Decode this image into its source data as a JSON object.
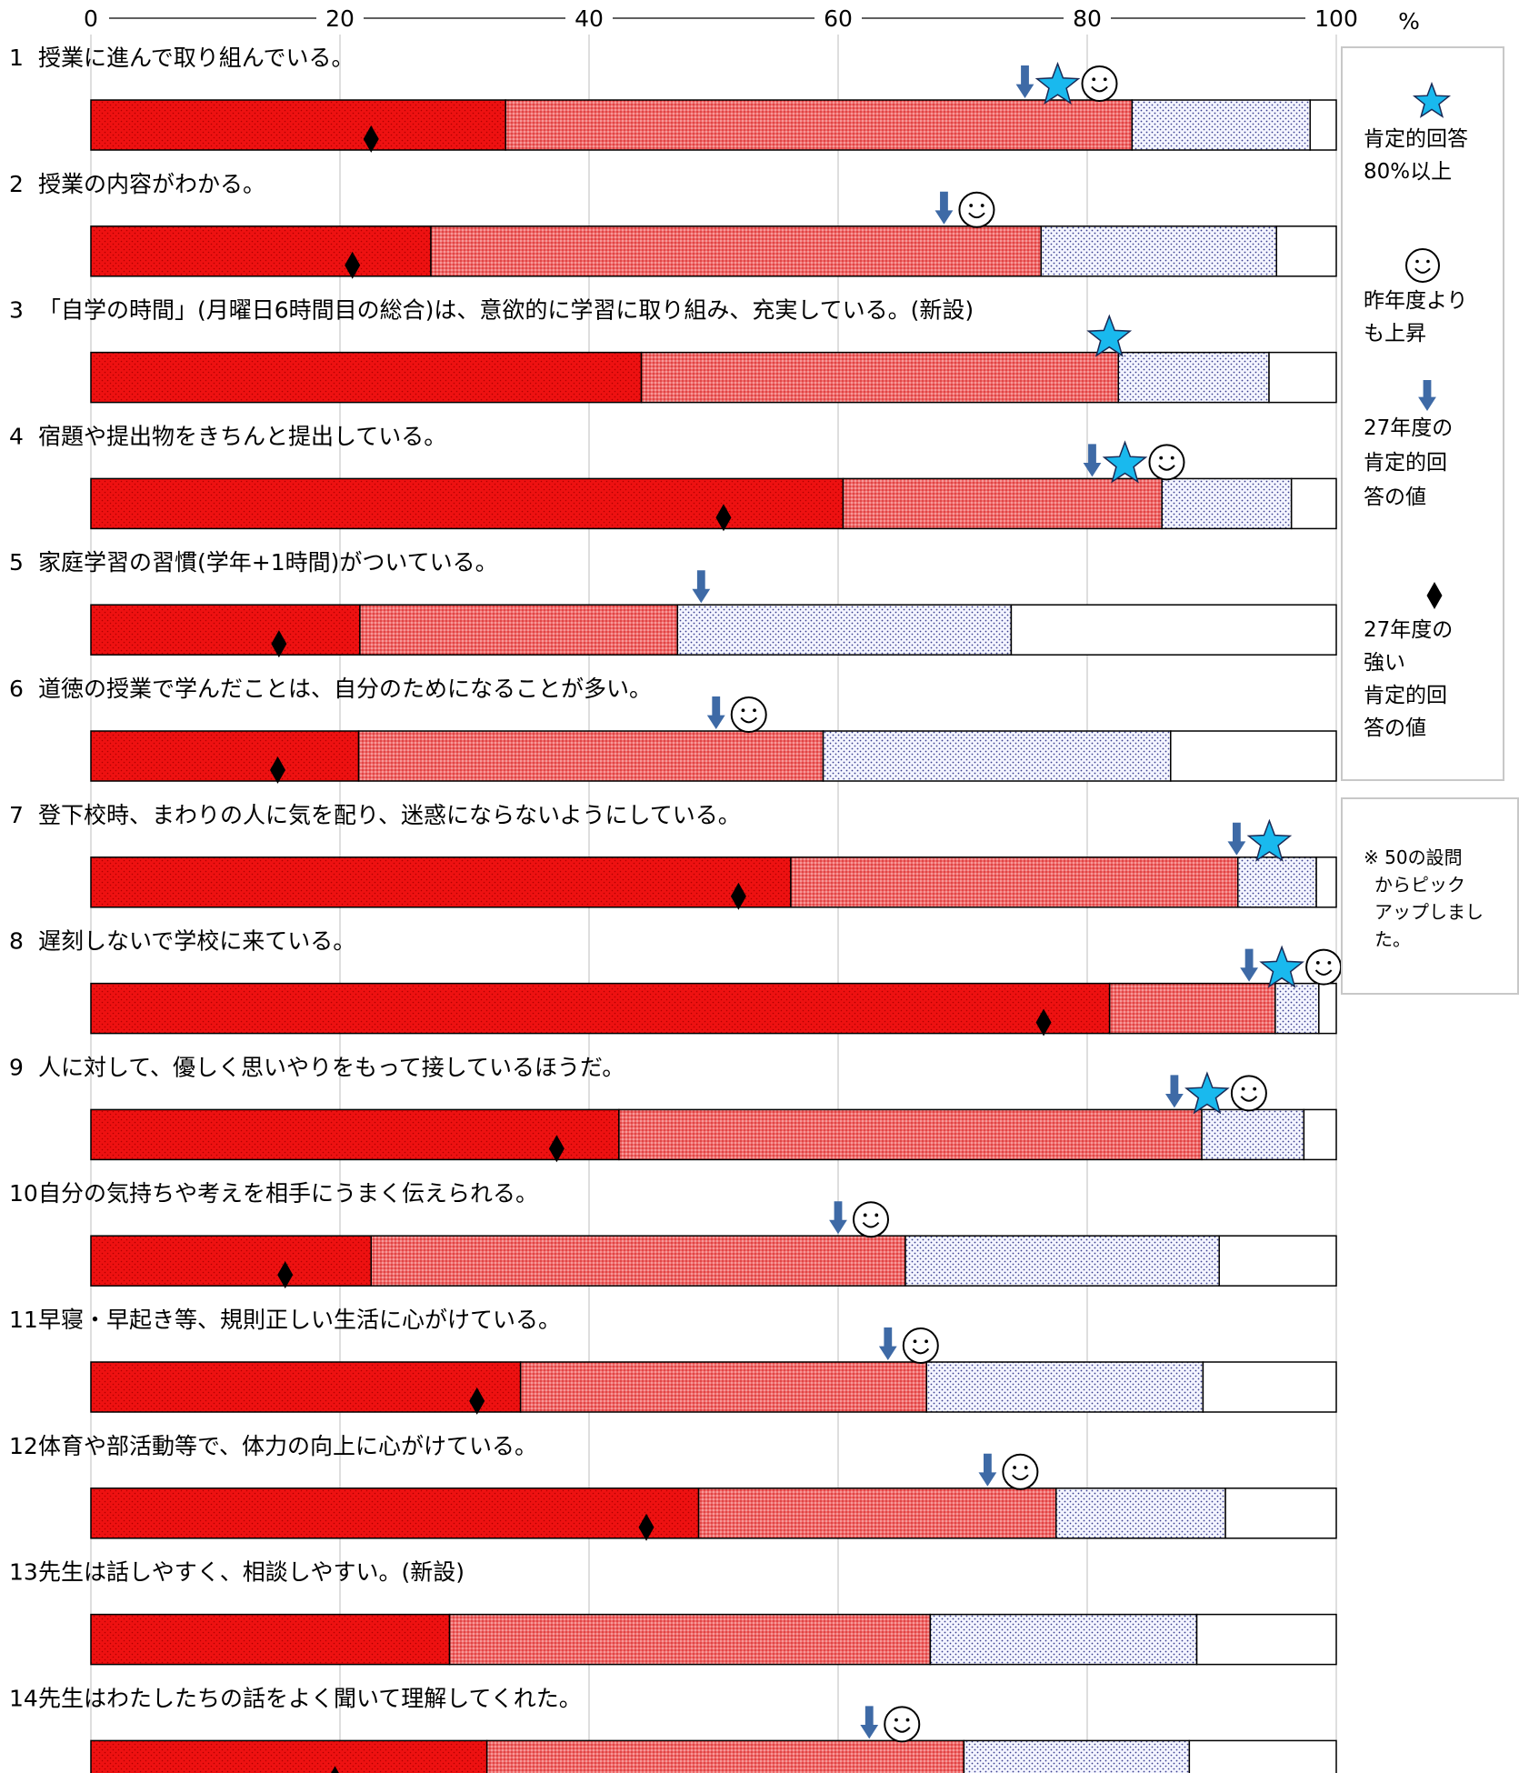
{
  "chart_data": {
    "type": "bar",
    "orientation": "horizontal",
    "stacked": true,
    "xlim": [
      0,
      100
    ],
    "x_ticks": [
      "0",
      "20",
      "40",
      "60",
      "80",
      "100"
    ],
    "x_unit": "%",
    "grid": true,
    "legend_position": "right",
    "colors": {
      "strong_positive": "#ee1111",
      "positive": "#f07575",
      "negative": "#eef0ff",
      "strong_negative": "#ffffff",
      "star": "#19b9ee",
      "arrow": "#3e6aa6",
      "diamond": "#000000"
    },
    "legend": [
      {
        "icon": "star-icon",
        "text": [
          "肯定的回答",
          "80%以上"
        ]
      },
      {
        "icon": "smiley-icon",
        "text": [
          "昨年度より",
          "も上昇"
        ]
      },
      {
        "icon": "down-arrow-icon",
        "text": [
          "27年度の",
          "肯定的回",
          "答の値"
        ]
      },
      {
        "icon": "diamond-icon",
        "text": [
          "27年度の",
          "強い",
          "肯定的回",
          "答の値"
        ]
      }
    ],
    "note": [
      "※ 50の設問",
      "からピック",
      "アップしまし",
      "た。"
    ],
    "questions": [
      {
        "num": "1",
        "label": "授業に進んで取り組んでいる。",
        "segments": [
          33.3,
          50.3,
          14.3,
          2.1
        ],
        "diamond": 22.5,
        "arrow": 75.0,
        "star": true,
        "smiley": true
      },
      {
        "num": "2",
        "label": "授業の内容がわかる。",
        "segments": [
          27.3,
          49.0,
          18.9,
          4.8
        ],
        "diamond": 21.0,
        "arrow": 68.5,
        "star": false,
        "smiley": true
      },
      {
        "num": "3",
        "label": "「自学の時間」(月曜日6時間目の総合)は、意欲的に学習に取り組み、充実している。(新設)",
        "segments": [
          44.2,
          38.3,
          12.1,
          5.4
        ],
        "diamond": null,
        "arrow": null,
        "star": true,
        "smiley": false
      },
      {
        "num": "4",
        "label": "宿題や提出物をきちんと提出している。",
        "segments": [
          60.4,
          25.6,
          10.4,
          3.6
        ],
        "diamond": 50.8,
        "arrow": 80.4,
        "star": true,
        "smiley": true
      },
      {
        "num": "5",
        "label": "家庭学習の習慣(学年+1時間)がついている。",
        "segments": [
          21.6,
          25.5,
          26.8,
          26.1
        ],
        "diamond": 15.1,
        "arrow": 49.0,
        "star": false,
        "smiley": false
      },
      {
        "num": "6",
        "label": "道徳の授業で学んだことは、自分のためになることが多い。",
        "segments": [
          21.5,
          37.3,
          27.9,
          13.3
        ],
        "diamond": 15.0,
        "arrow": 50.2,
        "star": false,
        "smiley": true
      },
      {
        "num": "7",
        "label": "登下校時、まわりの人に気を配り、迷惑にならないようにしている。",
        "segments": [
          56.2,
          35.9,
          6.3,
          1.6
        ],
        "diamond": 52.0,
        "arrow": 92.0,
        "star": true,
        "smiley": false
      },
      {
        "num": "8",
        "label": "遅刻しないで学校に来ている。",
        "segments": [
          81.8,
          13.3,
          3.5,
          1.4
        ],
        "diamond": 76.5,
        "arrow": 93.0,
        "star": true,
        "smiley": true
      },
      {
        "num": "9",
        "label": "人に対して、優しく思いやりをもって接しているほうだ。",
        "segments": [
          42.4,
          46.8,
          8.2,
          2.6
        ],
        "diamond": 37.4,
        "arrow": 87.0,
        "star": true,
        "smiley": true
      },
      {
        "num": "10",
        "label": "自分の気持ちや考えを相手にうまく伝えられる。",
        "segments": [
          22.5,
          42.9,
          25.2,
          9.4
        ],
        "diamond": 15.6,
        "arrow": 60.0,
        "star": false,
        "smiley": true
      },
      {
        "num": "11",
        "label": "早寝・早起き等、規則正しい生活に心がけている。",
        "segments": [
          34.5,
          32.6,
          22.2,
          10.7
        ],
        "diamond": 31.0,
        "arrow": 64.0,
        "star": false,
        "smiley": true
      },
      {
        "num": "12",
        "label": "体育や部活動等で、体力の向上に心がけている。",
        "segments": [
          48.8,
          28.7,
          13.6,
          8.9
        ],
        "diamond": 44.6,
        "arrow": 72.0,
        "star": false,
        "smiley": true
      },
      {
        "num": "13",
        "label": "先生は話しやすく、相談しやすい。(新設)",
        "segments": [
          28.8,
          38.6,
          21.4,
          11.2
        ],
        "diamond": null,
        "arrow": null,
        "star": false,
        "smiley": false
      },
      {
        "num": "14",
        "label": "先生はわたしたちの話をよく聞いて理解してくれた。",
        "segments": [
          31.8,
          38.3,
          18.1,
          11.8
        ],
        "diamond": 19.6,
        "arrow": 62.5,
        "star": false,
        "smiley": true
      }
    ]
  }
}
